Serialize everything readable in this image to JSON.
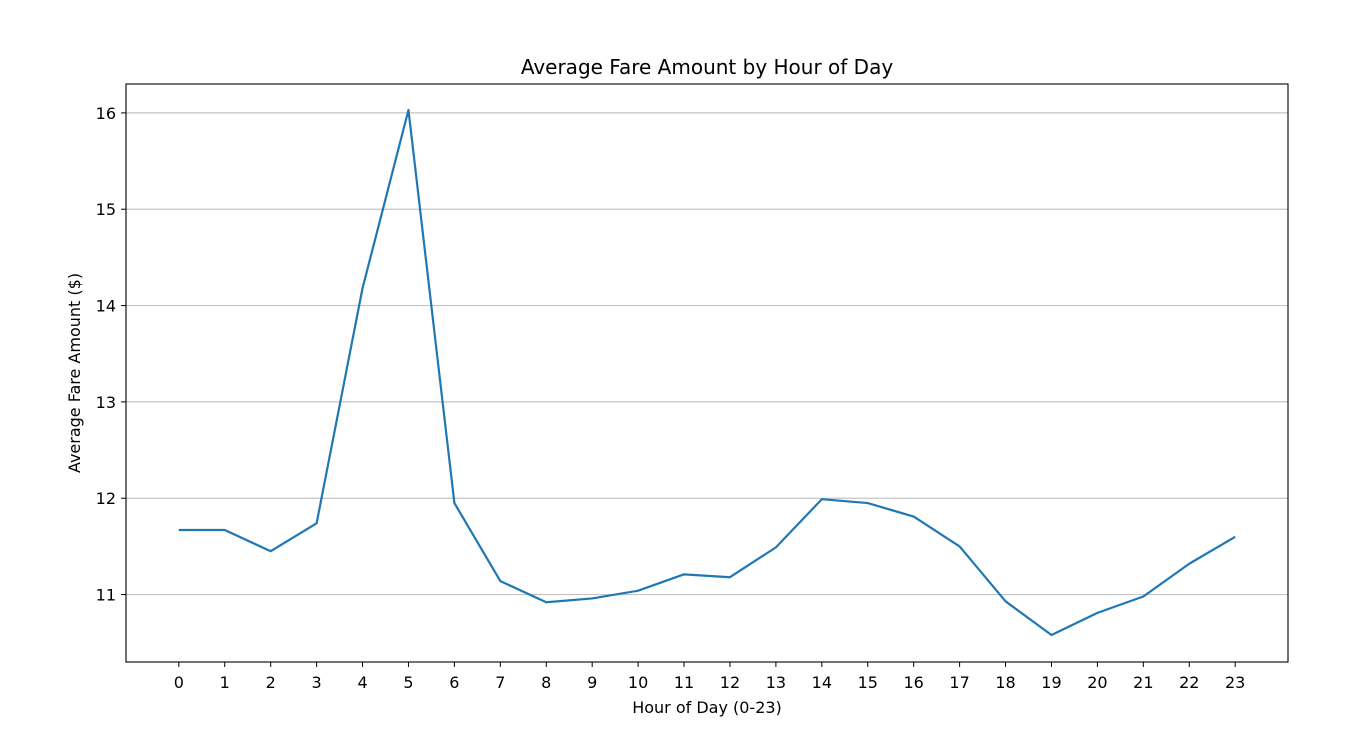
{
  "chart_data": {
    "type": "line",
    "title": "Average Fare Amount by Hour of Day",
    "xlabel": "Hour of Day (0-23)",
    "ylabel": "Average Fare Amount ($)",
    "x": [
      0,
      1,
      2,
      3,
      4,
      5,
      6,
      7,
      8,
      9,
      10,
      11,
      12,
      13,
      14,
      15,
      16,
      17,
      18,
      19,
      20,
      21,
      22,
      23
    ],
    "series": [
      {
        "values": [
          11.67,
          11.67,
          11.45,
          11.74,
          14.18,
          16.03,
          11.95,
          11.14,
          10.92,
          10.96,
          11.04,
          11.21,
          11.18,
          11.49,
          11.99,
          11.95,
          11.81,
          11.5,
          10.93,
          10.58,
          10.81,
          10.98,
          11.32,
          11.6
        ],
        "color": "#1f77b4"
      }
    ],
    "xticks": [
      "0",
      "1",
      "2",
      "3",
      "4",
      "5",
      "6",
      "7",
      "8",
      "9",
      "10",
      "11",
      "12",
      "13",
      "14",
      "15",
      "16",
      "17",
      "18",
      "19",
      "20",
      "21",
      "22",
      "23"
    ],
    "yticks": [
      11,
      12,
      13,
      14,
      15,
      16
    ],
    "ytick_labels": [
      "11",
      "12",
      "13",
      "14",
      "15",
      "16"
    ],
    "xlim": [
      -1.15,
      24.15
    ],
    "ylim": [
      10.3,
      16.3
    ],
    "grid": "horizontal"
  }
}
